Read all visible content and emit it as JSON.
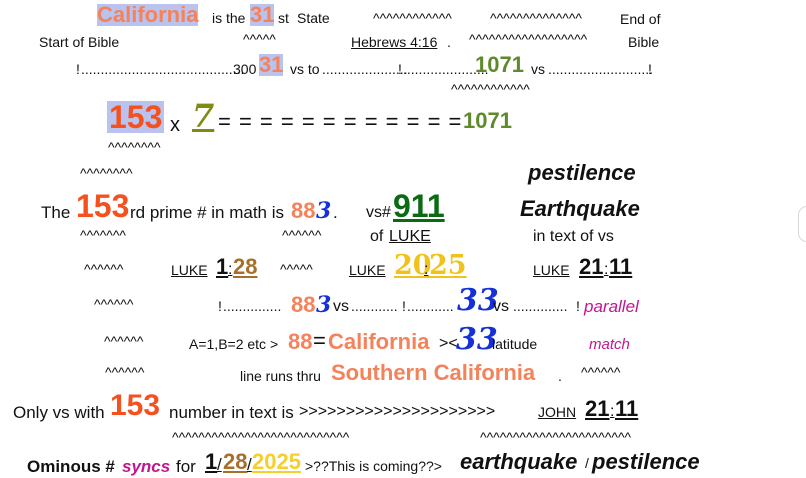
{
  "row1": {
    "california": "California",
    "is_the": "is the",
    "n31": "31",
    "st": "st",
    "state": "State",
    "carets_a": "^^^^^^^^^^^^",
    "carets_b": "^^^^^^^^^^^^^^",
    "end_of": "End of"
  },
  "row2": {
    "start_of_bible": "Start of Bible",
    "carets": "^^^^^",
    "hebrews": "Hebrews 4:16",
    "dot": ".",
    "carets_b": "^^^^^^^^^^^^^^^^^^",
    "bible": "Bible"
  },
  "row3": {
    "excl": "!",
    "dots1": "..........................................",
    "n300": "300",
    "n31": "31",
    "vs_to": "vs to",
    "dots2": "......................",
    "excl2": "!",
    "dots3": "......................",
    "n1071": "1071",
    "vs": "vs",
    "dots4": "...........................",
    "excl3": "!"
  },
  "row3b": {
    "carets": "^^^^^^^^^^^^"
  },
  "row4": {
    "n153": "153",
    "x": "x",
    "n7": "7",
    "equals": "= = = = = = = = = = = =",
    "n1071": "1071"
  },
  "row5": {
    "carets_under": "^^^^^^^^"
  },
  "row6": {
    "carets": "^^^^^^^^",
    "pestilence": "pestilence"
  },
  "row7": {
    "the": "The",
    "n153": "153",
    "rd_prime": "rd prime # in math is",
    "n88": "88",
    "n3": "3",
    "dot": ".",
    "vs_hash": "vs#",
    "n911": "911",
    "earthquake": "Earthquake"
  },
  "row8": {
    "carets_a": "^^^^^^^",
    "carets_b": "^^^^^^",
    "of": "of",
    "luke": "LUKE",
    "in_text": "in text of vs"
  },
  "row9": {
    "carets_a": "^^^^^^",
    "luke_a": "LUKE",
    "n1": "1",
    "colon": ":",
    "n28": "28",
    "carets_b": "^^^^^",
    "luke_b": "LUKE",
    "n20": "20",
    "colon_b": ":",
    "n25": "25",
    "luke_c": "LUKE",
    "n21": "21",
    "colon_c": ":",
    "n11": "11"
  },
  "row10": {
    "carets": "^^^^^^",
    "excl": "!",
    "dots1": "...............",
    "n88": "88",
    "n3": "3",
    "vs": "vs",
    "dots2": "............",
    "excl2": "!",
    "dots3": "............",
    "n33": "33",
    "vs2": "vs",
    "dots4": "..............",
    "excl3": "!",
    "parallel": "parallel"
  },
  "row11": {
    "carets": "^^^^^^",
    "a1b2": "A=1,B=2 etc >",
    "n88": "88",
    "eq": "=",
    "california": "California",
    "angle": "><",
    "n33": "33",
    "latitude": "latitude",
    "match": "match"
  },
  "row12": {
    "carets": "^^^^^^",
    "line_runs": "line runs thru",
    "southern": "Southern California",
    "dot": ".",
    "carets_b": "^^^^^^"
  },
  "row13": {
    "only": "Only vs with",
    "n153": "153",
    "number_in_text": "number in text is",
    "arrows": ">>>>>>>>>>>>>>>>>>>>>",
    "john": "JOHN",
    "n21": "21",
    "colon": ":",
    "n11": "11"
  },
  "row14": {
    "carets_a": "^^^^^^^^^^^^^^^^^^^^^^^^^^^",
    "carets_b": "^^^^^^^^^^^^^^^^^^^^^^^"
  },
  "row15": {
    "ominous": "Ominous #",
    "syncs": "syncs",
    "for": "for",
    "n1": "1",
    "slash1": "/",
    "n28": "28",
    "slash2": "/",
    "n2025": "2025",
    "coming": ">??This is coming??>",
    "earthquake": "earthquake",
    "slash3": "/",
    "pestilence": "pestilence"
  },
  "colors": {
    "salmon": "#f4825a",
    "orange": "#f4511e",
    "green": "#5f8a2c",
    "dark_green": "#0a6b12",
    "olive": "#7f8b12",
    "blue": "#1530d6",
    "brown": "#a86f2a",
    "yellow": "#f0c21a",
    "magenta": "#c0168f",
    "highlight": "#b9c3ee"
  }
}
